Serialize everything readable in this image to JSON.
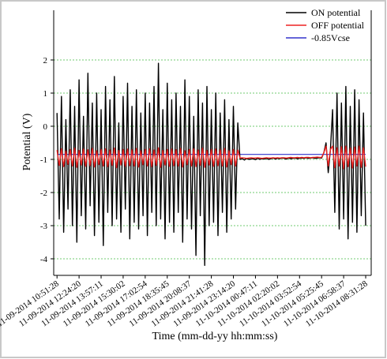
{
  "chart_data": {
    "type": "line",
    "xlabel": "Time (mm-dd-yy hh:mm:ss)",
    "ylabel": "Potential (V)",
    "x": [
      0,
      1,
      2,
      3,
      4,
      5,
      6,
      7,
      8,
      9,
      10,
      11,
      12,
      13,
      14,
      15,
      16,
      17,
      18,
      19,
      20,
      21,
      22,
      23,
      24,
      25,
      26,
      27,
      28,
      29,
      30,
      31,
      32,
      33,
      34,
      35,
      36,
      37,
      38,
      39,
      40,
      41,
      42,
      43,
      44,
      45,
      46,
      47,
      48,
      49,
      50,
      51,
      52,
      53,
      54,
      55,
      56,
      57,
      58,
      59,
      60,
      61,
      62,
      63,
      64,
      65,
      66,
      67,
      68,
      69,
      70,
      71,
      72,
      73,
      74,
      75,
      76,
      77,
      78,
      79,
      80,
      81,
      82,
      83,
      84,
      85,
      86,
      87,
      88,
      89,
      90,
      91,
      92,
      93,
      94,
      95,
      96,
      97,
      98,
      99,
      100,
      101,
      102,
      103,
      104,
      105,
      106,
      107,
      108,
      109,
      110,
      111,
      112,
      113,
      114,
      115,
      116,
      117,
      118,
      119,
      120,
      121,
      122,
      123,
      124,
      125,
      126,
      127,
      128,
      129,
      130,
      131,
      132,
      133,
      134,
      135,
      136,
      137,
      138,
      139,
      140
    ],
    "xlim": [
      -1.5,
      142.5
    ],
    "xticks": [
      {
        "value": 0,
        "label": "11-09-2014 10:51:28"
      },
      {
        "value": 10,
        "label": "11-09-2014 12:24:20"
      },
      {
        "value": 20,
        "label": "11-09-2014 13:57:11"
      },
      {
        "value": 30,
        "label": "11-09-2014 15:30:02"
      },
      {
        "value": 40,
        "label": "11-09-2014 17:02:54"
      },
      {
        "value": 50,
        "label": "11-09-2014 18:35:45"
      },
      {
        "value": 60,
        "label": "11-09-2014 20:08:37"
      },
      {
        "value": 70,
        "label": "11-09-2014 21:41:28"
      },
      {
        "value": 80,
        "label": "11-09-2014 23:14:20"
      },
      {
        "value": 90,
        "label": "11-10-2014 00:47:11"
      },
      {
        "value": 100,
        "label": "11-10-2014 02:20:02"
      },
      {
        "value": 110,
        "label": "11-10-2014 03:52:54"
      },
      {
        "value": 120,
        "label": "11-10-2014 05:25:45"
      },
      {
        "value": 130,
        "label": "11-10-2014 06:58:37"
      },
      {
        "value": 140,
        "label": "11-10-2014 08:31:28"
      }
    ],
    "ylim": [
      -4.5,
      3.5
    ],
    "yticks": [
      -4,
      -3,
      -2,
      -1,
      0,
      1,
      2
    ],
    "grid": true,
    "legend": "top-right",
    "series": [
      {
        "name": "-0.85Vcse",
        "color": "#3333cc",
        "x": [
          0,
          140
        ],
        "values": [
          -0.85,
          -0.85
        ]
      },
      {
        "name": "ON potential",
        "color": "#000000",
        "values": [
          0.4,
          -2.8,
          0.9,
          -3.2,
          0.2,
          -2.5,
          1.1,
          -3.0,
          0.6,
          -3.5,
          1.4,
          -2.7,
          0.3,
          -3.1,
          1.6,
          -2.4,
          0.7,
          -3.3,
          1.0,
          -2.9,
          0.5,
          -3.6,
          1.2,
          -2.6,
          0.8,
          -3.0,
          1.5,
          -2.8,
          0.1,
          -3.2,
          0.9,
          -2.5,
          1.3,
          -3.4,
          0.6,
          -2.9,
          1.1,
          -3.1,
          0.4,
          -2.7,
          1.0,
          -3.3,
          0.7,
          -2.6,
          1.2,
          -3.0,
          1.9,
          -2.8,
          0.5,
          -3.4,
          1.3,
          -2.9,
          0.8,
          -3.2,
          1.0,
          -2.6,
          0.6,
          -3.5,
          1.4,
          -2.8,
          0.9,
          -3.1,
          0.3,
          -3.9,
          1.1,
          -2.7,
          0.7,
          -4.2,
          1.2,
          -3.0,
          0.5,
          -2.9,
          1.0,
          -3.3,
          0.4,
          -2.6,
          0.8,
          -3.2,
          0.2,
          -2.8,
          0.6,
          -2.5,
          0.1,
          -1.0,
          -0.98,
          -1.02,
          -0.97,
          -1.0,
          -0.99,
          -0.98,
          -1.01,
          -0.97,
          -1.0,
          -0.98,
          -0.99,
          -0.97,
          -1.0,
          -0.98,
          -0.96,
          -0.99,
          -0.97,
          -0.98,
          -0.96,
          -0.97,
          -0.99,
          -0.96,
          -0.98,
          -0.97,
          -0.96,
          -0.98,
          -0.97,
          -0.96,
          -0.97,
          -0.95,
          -0.97,
          -0.96,
          -0.95,
          -0.97,
          -0.96,
          -0.95,
          -0.96,
          -0.8,
          -0.5,
          -1.4,
          -0.7,
          0.5,
          -2.6,
          1.0,
          -3.1,
          0.7,
          -2.8,
          1.2,
          -3.4,
          0.6,
          -2.9,
          1.1,
          -3.2,
          0.8,
          -2.7,
          0.4,
          -3.0
        ]
      },
      {
        "name": "OFF potential",
        "color": "#ee2222",
        "values": [
          -0.72,
          -1.18,
          -0.68,
          -1.22,
          -0.75,
          -1.15,
          -0.7,
          -1.2,
          -0.66,
          -1.24,
          -0.73,
          -1.17,
          -0.69,
          -1.21,
          -0.71,
          -1.19,
          -0.67,
          -1.23,
          -0.74,
          -1.16,
          -0.7,
          -1.2,
          -0.68,
          -1.22,
          -0.72,
          -1.18,
          -0.66,
          -1.25,
          -0.73,
          -1.17,
          -0.7,
          -1.21,
          -0.69,
          -1.19,
          -0.71,
          -1.2,
          -0.67,
          -1.23,
          -0.74,
          -1.16,
          -0.7,
          -1.2,
          -0.68,
          -1.22,
          -0.72,
          -1.18,
          -0.65,
          -1.24,
          -0.73,
          -1.17,
          -0.7,
          -1.21,
          -0.69,
          -1.19,
          -0.71,
          -1.2,
          -0.67,
          -1.23,
          -0.74,
          -1.16,
          -0.7,
          -1.2,
          -0.68,
          -1.22,
          -0.72,
          -1.18,
          -0.66,
          -1.24,
          -0.73,
          -1.17,
          -0.7,
          -1.21,
          -0.69,
          -1.19,
          -0.71,
          -1.2,
          -0.67,
          -1.23,
          -0.74,
          -1.16,
          -0.7,
          -1.2,
          -0.72,
          -0.96,
          -0.95,
          -0.96,
          -0.97,
          -0.96,
          -0.95,
          -0.96,
          -0.96,
          -0.95,
          -0.96,
          -0.97,
          -0.96,
          -0.95,
          -0.96,
          -0.96,
          -0.95,
          -0.96,
          -0.95,
          -0.96,
          -0.95,
          -0.95,
          -0.96,
          -0.95,
          -0.94,
          -0.95,
          -0.95,
          -0.94,
          -0.95,
          -0.94,
          -0.95,
          -0.94,
          -0.94,
          -0.95,
          -0.94,
          -0.94,
          -0.93,
          -0.94,
          -0.94,
          -0.8,
          -0.6,
          -1.2,
          -0.7,
          -0.6,
          -1.25,
          -0.65,
          -1.2,
          -0.62,
          -1.28,
          -0.6,
          -1.22,
          -0.66,
          -1.26,
          -0.63,
          -1.2,
          -0.6,
          -1.24,
          -0.65,
          -1.22
        ]
      }
    ]
  }
}
